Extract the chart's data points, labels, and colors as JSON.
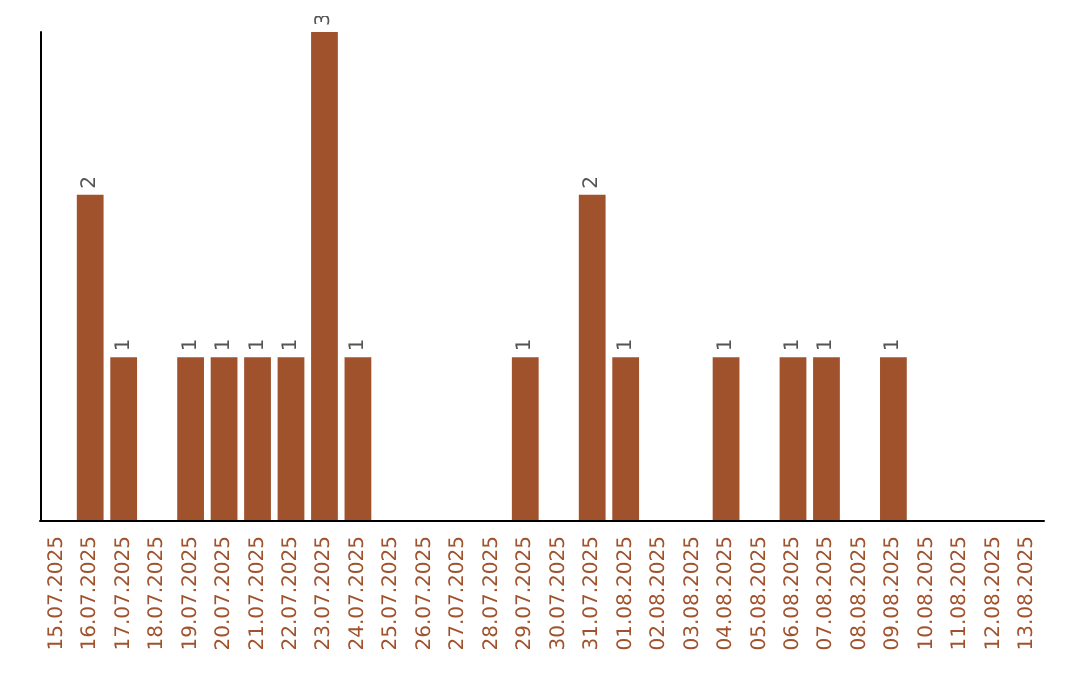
{
  "chart_data": {
    "type": "bar",
    "categories": [
      "15.07.2025",
      "16.07.2025",
      "17.07.2025",
      "18.07.2025",
      "19.07.2025",
      "20.07.2025",
      "21.07.2025",
      "22.07.2025",
      "23.07.2025",
      "24.07.2025",
      "25.07.2025",
      "26.07.2025",
      "27.07.2025",
      "28.07.2025",
      "29.07.2025",
      "30.07.2025",
      "31.07.2025",
      "01.08.2025",
      "02.08.2025",
      "03.08.2025",
      "04.08.2025",
      "05.08.2025",
      "06.08.2025",
      "07.08.2025",
      "08.08.2025",
      "09.08.2025",
      "10.08.2025",
      "11.08.2025",
      "12.08.2025",
      "13.08.2025"
    ],
    "values": [
      0,
      2,
      1,
      0,
      1,
      1,
      1,
      1,
      3,
      1,
      0,
      0,
      0,
      0,
      1,
      0,
      2,
      1,
      0,
      0,
      1,
      0,
      1,
      1,
      0,
      1,
      0,
      0,
      0,
      0
    ],
    "value_labels": [
      null,
      "2",
      "1",
      null,
      "1",
      "1",
      "1",
      "1",
      "3",
      "1",
      null,
      null,
      null,
      null,
      "1",
      null,
      "2",
      "1",
      null,
      null,
      "1",
      null,
      "1",
      "1",
      null,
      "1",
      null,
      null,
      null,
      null
    ],
    "color": "#a0522d",
    "tick_labels": "x"
  }
}
